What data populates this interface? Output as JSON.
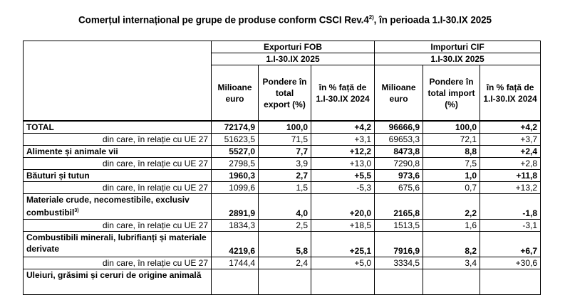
{
  "title": {
    "text": "Comerțul internațional pe grupe de produse conform CSCI Rev.4",
    "footnote": "2)",
    "suffix": ", în perioada 1.I-30.IX 2025"
  },
  "table": {
    "groups": [
      {
        "label": "Exporturi FOB",
        "period": "1.I-30.IX 2025"
      },
      {
        "label": "Importuri CIF",
        "period": "1.I-30.IX 2025"
      }
    ],
    "columns": [
      "Milioane euro",
      "Pondere în total export (%)",
      "în % față de 1.I-30.IX 2024",
      "Milioane euro",
      "Pondere în total import (%)",
      "în % față de 1.I-30.IX 2024"
    ],
    "rows": [
      {
        "type": "cat",
        "label": "TOTAL",
        "footnote": "",
        "values": [
          "72174,9",
          "100,0",
          "+4,2",
          "96666,9",
          "100,0",
          "+4,2"
        ]
      },
      {
        "type": "sub",
        "label": "din care, în relație cu UE 27",
        "values": [
          "51623,5",
          "71,5",
          "+3,1",
          "69653,3",
          "72,1",
          "+3,7"
        ]
      },
      {
        "type": "cat",
        "label": "Alimente și animale vii",
        "footnote": "",
        "values": [
          "5527,0",
          "7,7",
          "+12,2",
          "8473,8",
          "8,8",
          "+2,4"
        ]
      },
      {
        "type": "sub",
        "label": "din care, în relație cu UE 27",
        "values": [
          "2798,5",
          "3,9",
          "+13,0",
          "7290,8",
          "7,5",
          "+2,8"
        ]
      },
      {
        "type": "cat",
        "label": "Băuturi și tutun",
        "footnote": "",
        "values": [
          "1960,3",
          "2,7",
          "+5,5",
          "973,6",
          "1,0",
          "+11,8"
        ]
      },
      {
        "type": "sub",
        "label": "din care, în relație cu UE 27",
        "values": [
          "1099,6",
          "1,5",
          "-5,3",
          "675,6",
          "0,7",
          "+13,2"
        ]
      },
      {
        "type": "cat2",
        "label": "Materiale crude, necomestibile, exclusiv combustibil",
        "footnote": "3)",
        "values": [
          "2891,9",
          "4,0",
          "+20,0",
          "2165,8",
          "2,2",
          "-1,8"
        ]
      },
      {
        "type": "sub",
        "label": "din care, în relație cu UE 27",
        "values": [
          "1834,3",
          "2,5",
          "+18,5",
          "1513,5",
          "1,6",
          "-3,1"
        ]
      },
      {
        "type": "cat2",
        "label": "Combustibili minerali, lubrifianți și materiale derivate",
        "footnote": "",
        "values": [
          "4219,6",
          "5,8",
          "+25,1",
          "7916,9",
          "8,2",
          "+6,7"
        ]
      },
      {
        "type": "sub",
        "label": "din care, în relație cu UE 27",
        "values": [
          "1744,4",
          "2,4",
          "+5,0",
          "3334,5",
          "3,4",
          "+30,6"
        ]
      },
      {
        "type": "cat2",
        "label": "Uleiuri, grăsimi și ceruri de origine animală",
        "footnote": "",
        "values": [
          "",
          "",
          "",
          "",
          "",
          ""
        ]
      }
    ]
  }
}
